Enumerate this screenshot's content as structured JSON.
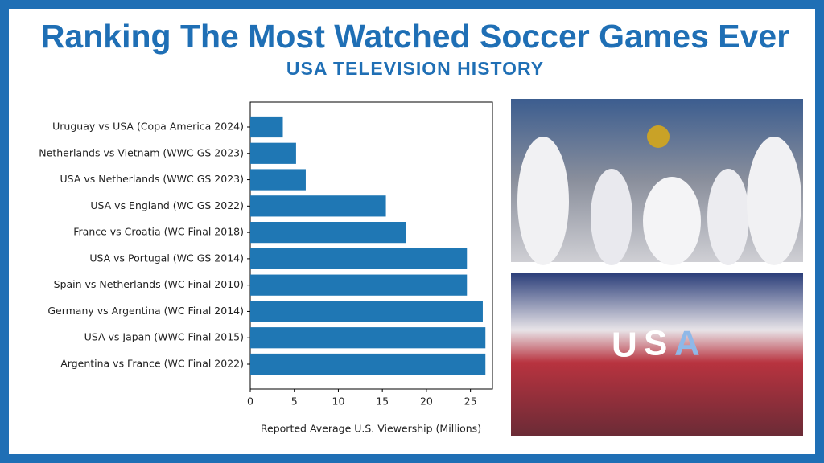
{
  "chart_data": {
    "type": "barh",
    "title": "Ranking The Most Watched Soccer Games Ever",
    "subtitle": "USA TELEVISION HISTORY",
    "xlabel": "Reported Average U.S. Viewership (Millions)",
    "categories": [
      "Uruguay vs USA (Copa America 2024)",
      "Netherlands vs Vietnam (WWC GS 2023)",
      "USA vs Netherlands (WWC GS 2023)",
      "USA vs England (WC GS 2022)",
      "France vs Croatia (WC Final 2018)",
      "USA vs Portugal (WC GS 2014)",
      "Spain vs Netherlands (WC Final 2010)",
      "Germany vs Argentina (WC Final 2014)",
      "USA vs Japan (WWC Final 2015)",
      "Argentina vs France (WC Final 2022)"
    ],
    "values": [
      3.7,
      5.2,
      6.3,
      15.4,
      17.7,
      24.6,
      24.6,
      26.4,
      26.7,
      26.7
    ],
    "color": "#1f77b4",
    "xlim": [
      0,
      27.5
    ],
    "xticks": [
      0,
      5,
      10,
      15,
      20,
      25
    ]
  }
}
